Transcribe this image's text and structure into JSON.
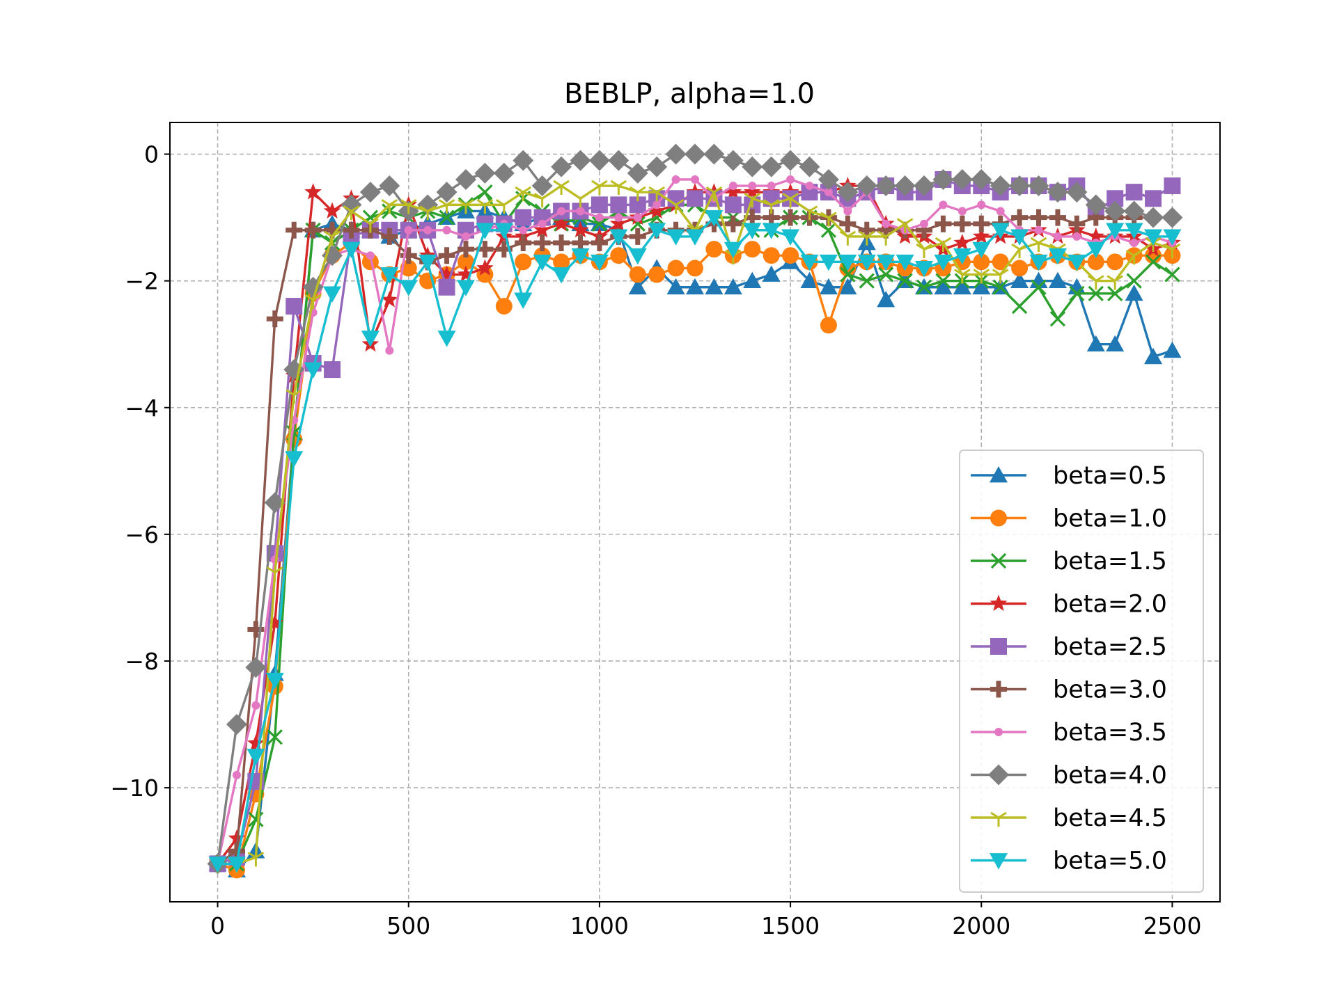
{
  "chart_data": {
    "type": "line",
    "title": "BEBLP, alpha=1.0",
    "xlabel": "",
    "ylabel": "",
    "xlim": [
      -125,
      2625
    ],
    "ylim": [
      -11.8,
      0.5
    ],
    "xticks": [
      0,
      500,
      1000,
      1500,
      2000,
      2500
    ],
    "yticks": [
      0,
      -2,
      -4,
      -6,
      -8,
      -10
    ],
    "xtick_labels": [
      "0",
      "500",
      "1000",
      "1500",
      "2000",
      "2500"
    ],
    "ytick_labels": [
      "0",
      "−2",
      "−4",
      "−6",
      "−8",
      "−10"
    ],
    "grid": true,
    "legend_position": "lower right",
    "x": [
      0,
      50,
      100,
      150,
      200,
      250,
      300,
      350,
      400,
      450,
      500,
      550,
      600,
      650,
      700,
      750,
      800,
      850,
      900,
      950,
      1000,
      1050,
      1100,
      1150,
      1200,
      1250,
      1300,
      1350,
      1400,
      1450,
      1500,
      1550,
      1600,
      1650,
      1700,
      1750,
      1800,
      1850,
      1900,
      1950,
      2000,
      2050,
      2100,
      2150,
      2200,
      2250,
      2300,
      2350,
      2400,
      2450,
      2500
    ],
    "series": [
      {
        "name": "beta=0.5",
        "color": "#1f77b4",
        "marker": "triangle-up",
        "values": [
          -11.2,
          -11.3,
          -11.0,
          -8.2,
          -4.4,
          -1.2,
          -1.1,
          -1.2,
          -1.2,
          -1.3,
          -1.2,
          -1.1,
          -1.0,
          -0.9,
          -0.9,
          -1.0,
          -1.1,
          -1.0,
          -1.0,
          -1.1,
          -1.1,
          -1.2,
          -2.1,
          -1.8,
          -2.1,
          -2.1,
          -2.1,
          -2.1,
          -2.0,
          -1.9,
          -1.7,
          -2.0,
          -2.1,
          -2.1,
          -1.4,
          -2.3,
          -2.0,
          -2.1,
          -2.1,
          -2.1,
          -2.1,
          -2.1,
          -2.0,
          -2.0,
          -2.0,
          -2.1,
          -3.0,
          -3.0,
          -2.2,
          -3.2,
          -3.1
        ]
      },
      {
        "name": "beta=1.0",
        "color": "#ff7f0e",
        "marker": "circle",
        "values": [
          -11.2,
          -11.3,
          -10.1,
          -8.4,
          -4.5,
          -2.2,
          -1.6,
          -1.4,
          -1.7,
          -1.9,
          -1.8,
          -2.0,
          -1.9,
          -1.7,
          -1.9,
          -2.4,
          -1.7,
          -1.6,
          -1.7,
          -1.6,
          -1.7,
          -1.6,
          -1.9,
          -1.9,
          -1.8,
          -1.8,
          -1.5,
          -1.6,
          -1.5,
          -1.6,
          -1.6,
          -1.7,
          -2.7,
          -1.8,
          -1.7,
          -1.7,
          -1.8,
          -1.8,
          -1.8,
          -1.7,
          -1.7,
          -1.7,
          -1.8,
          -1.7,
          -1.6,
          -1.7,
          -1.7,
          -1.7,
          -1.6,
          -1.6,
          -1.6
        ]
      },
      {
        "name": "beta=1.5",
        "color": "#2ca02c",
        "marker": "x",
        "values": [
          -11.2,
          -11.2,
          -10.5,
          -9.2,
          -4.4,
          -1.2,
          -1.4,
          -1.2,
          -1.0,
          -0.9,
          -1.0,
          -0.9,
          -1.0,
          -0.8,
          -0.6,
          -1.1,
          -0.7,
          -0.9,
          -1.1,
          -1.0,
          -1.1,
          -0.9,
          -1.1,
          -1.0,
          -0.8,
          -0.8,
          -1.0,
          -1.0,
          -1.2,
          -1.2,
          -1.0,
          -1.0,
          -1.2,
          -1.9,
          -2.0,
          -1.9,
          -2.0,
          -2.1,
          -2.0,
          -2.0,
          -2.0,
          -2.1,
          -2.4,
          -2.1,
          -2.6,
          -2.2,
          -2.2,
          -2.2,
          -2.0,
          -1.7,
          -1.9
        ]
      },
      {
        "name": "beta=2.0",
        "color": "#d62728",
        "marker": "star",
        "values": [
          -11.2,
          -10.8,
          -9.3,
          -7.4,
          -3.5,
          -0.6,
          -0.9,
          -0.7,
          -3.0,
          -2.3,
          -0.8,
          -1.6,
          -1.9,
          -1.9,
          -1.8,
          -1.3,
          -1.3,
          -1.2,
          -1.1,
          -1.2,
          -1.3,
          -1.1,
          -1.0,
          -0.9,
          -0.8,
          -0.6,
          -0.6,
          -0.6,
          -0.6,
          -0.6,
          -0.6,
          -0.6,
          -0.6,
          -0.5,
          -0.5,
          -1.1,
          -1.3,
          -1.3,
          -1.5,
          -1.4,
          -1.3,
          -1.3,
          -1.3,
          -1.2,
          -1.3,
          -1.2,
          -1.3,
          -1.3,
          -1.3,
          -1.5,
          -1.4
        ]
      },
      {
        "name": "beta=2.5",
        "color": "#9467bd",
        "marker": "square",
        "values": [
          -11.2,
          -11.1,
          -9.9,
          -6.3,
          -2.4,
          -3.3,
          -3.4,
          -1.3,
          -1.2,
          -1.2,
          -1.2,
          -1.2,
          -2.1,
          -1.2,
          -1.1,
          -1.1,
          -1.0,
          -1.0,
          -0.9,
          -0.9,
          -0.8,
          -0.8,
          -0.8,
          -0.7,
          -0.7,
          -0.7,
          -0.7,
          -0.8,
          -0.8,
          -0.7,
          -0.7,
          -0.6,
          -0.6,
          -0.7,
          -0.6,
          -0.5,
          -0.6,
          -0.6,
          -0.4,
          -0.5,
          -0.5,
          -0.6,
          -0.5,
          -0.5,
          -0.6,
          -0.5,
          -0.9,
          -0.7,
          -0.6,
          -0.7,
          -0.5
        ]
      },
      {
        "name": "beta=3.0",
        "color": "#8c564b",
        "marker": "plus",
        "values": [
          -11.2,
          -11.0,
          -7.5,
          -2.6,
          -1.2,
          -1.2,
          -1.2,
          -1.2,
          -1.2,
          -1.3,
          -1.6,
          -1.7,
          -1.6,
          -1.5,
          -1.5,
          -1.5,
          -1.4,
          -1.4,
          -1.4,
          -1.4,
          -1.4,
          -1.3,
          -1.3,
          -1.2,
          -1.2,
          -1.2,
          -1.1,
          -1.1,
          -1.0,
          -1.0,
          -1.0,
          -1.0,
          -1.0,
          -1.1,
          -1.2,
          -1.2,
          -1.2,
          -1.2,
          -1.1,
          -1.1,
          -1.1,
          -1.1,
          -1.0,
          -1.0,
          -1.0,
          -1.1,
          -1.0,
          -1.0,
          -1.0,
          -1.0,
          -1.0
        ]
      },
      {
        "name": "beta=3.5",
        "color": "#e377c2",
        "marker": "point",
        "values": [
          -11.2,
          -9.8,
          -8.7,
          -6.4,
          -4.2,
          -2.5,
          -1.6,
          -1.5,
          -1.6,
          -3.1,
          -1.2,
          -1.2,
          -1.2,
          -1.3,
          -1.2,
          -1.1,
          -1.2,
          -1.1,
          -0.9,
          -0.9,
          -1.0,
          -1.0,
          -1.0,
          -0.8,
          -0.4,
          -0.4,
          -0.7,
          -0.5,
          -0.5,
          -0.5,
          -0.4,
          -0.5,
          -0.6,
          -0.9,
          -0.6,
          -1.1,
          -1.2,
          -1.1,
          -0.8,
          -0.9,
          -0.8,
          -0.9,
          -1.2,
          -1.2,
          -1.3,
          -1.3,
          -1.4,
          -1.3,
          -1.4,
          -1.3,
          -1.4
        ]
      },
      {
        "name": "beta=4.0",
        "color": "#7f7f7f",
        "marker": "diamond",
        "values": [
          -11.2,
          -9.0,
          -8.1,
          -5.5,
          -3.4,
          -2.1,
          -1.6,
          -0.8,
          -0.6,
          -0.5,
          -0.9,
          -0.8,
          -0.6,
          -0.4,
          -0.3,
          -0.3,
          -0.1,
          -0.5,
          -0.2,
          -0.1,
          -0.1,
          -0.1,
          -0.3,
          -0.2,
          0.0,
          0.0,
          0.0,
          -0.1,
          -0.2,
          -0.2,
          -0.1,
          -0.2,
          -0.4,
          -0.6,
          -0.5,
          -0.5,
          -0.5,
          -0.5,
          -0.4,
          -0.4,
          -0.4,
          -0.5,
          -0.5,
          -0.5,
          -0.6,
          -0.6,
          -0.8,
          -0.9,
          -0.9,
          -1.0,
          -1.0
        ]
      },
      {
        "name": "beta=4.5",
        "color": "#bcbd22",
        "marker": "tri-down",
        "values": [
          -11.2,
          -11.2,
          -11.1,
          -6.6,
          -3.8,
          -2.3,
          -1.3,
          -0.9,
          -1.1,
          -0.8,
          -0.8,
          -0.9,
          -0.8,
          -0.8,
          -0.8,
          -0.8,
          -0.6,
          -0.7,
          -0.5,
          -0.7,
          -0.5,
          -0.5,
          -0.6,
          -0.6,
          -0.8,
          -1.2,
          -0.6,
          -1.6,
          -0.7,
          -0.8,
          -0.7,
          -0.9,
          -1.0,
          -1.3,
          -1.3,
          -1.3,
          -1.1,
          -1.5,
          -1.4,
          -1.9,
          -1.9,
          -1.9,
          -1.5,
          -1.4,
          -1.5,
          -1.7,
          -2.0,
          -2.0,
          -1.6,
          -1.4,
          -1.5
        ]
      },
      {
        "name": "beta=5.0",
        "color": "#17becf",
        "marker": "triangle-down",
        "values": [
          -11.2,
          -11.2,
          -9.5,
          -8.3,
          -4.8,
          -3.4,
          -2.2,
          -1.5,
          -2.9,
          -1.9,
          -2.1,
          -1.7,
          -2.9,
          -2.1,
          -1.2,
          -1.2,
          -2.3,
          -1.7,
          -1.9,
          -1.6,
          -1.7,
          -1.3,
          -1.6,
          -1.2,
          -1.3,
          -1.3,
          -1.0,
          -1.5,
          -1.2,
          -1.2,
          -1.3,
          -1.7,
          -1.7,
          -1.7,
          -1.7,
          -1.7,
          -1.7,
          -1.8,
          -1.7,
          -1.6,
          -1.5,
          -1.2,
          -1.3,
          -1.7,
          -1.6,
          -1.7,
          -1.5,
          -1.2,
          -1.2,
          -1.3,
          -1.3
        ]
      }
    ]
  }
}
